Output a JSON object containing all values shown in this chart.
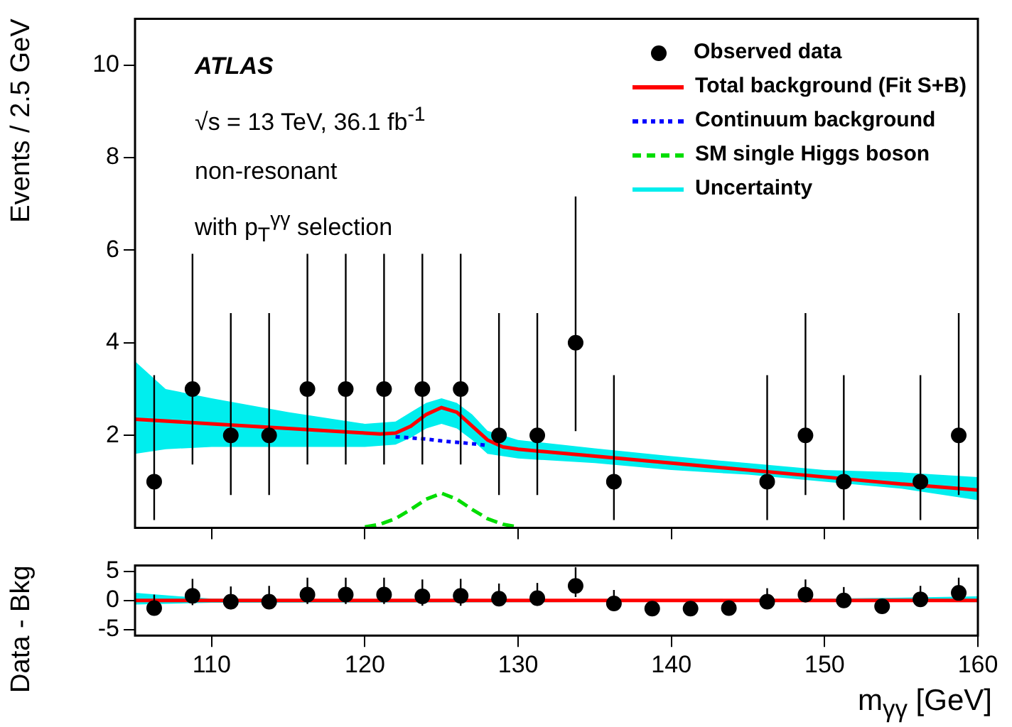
{
  "chart_data": [
    {
      "type": "scatter",
      "ylabel": "Events / 2.5 GeV",
      "xlim": [
        105,
        160
      ],
      "xticks": [
        110,
        120,
        130,
        140,
        150,
        160
      ],
      "ylim": [
        0,
        11
      ],
      "yticks": [
        2,
        4,
        6,
        8,
        10
      ],
      "tick_labels": "y",
      "legend": "top right",
      "grid": false,
      "annotations": [
        "ATLAS",
        "√s = 13 TeV, 36.1 fb$^{-1}$",
        "non-resonant",
        "with p$_{T}$$^{γγ}$ selection"
      ],
      "series": [
        {
          "name": "Observed data",
          "color": "#000000",
          "marker": "circle",
          "x": [
            106.25,
            108.75,
            111.25,
            113.75,
            116.25,
            118.75,
            121.25,
            123.75,
            126.25,
            128.75,
            131.25,
            133.75,
            136.25,
            138.75,
            141.25,
            143.75,
            146.25,
            148.75,
            151.25,
            153.75,
            156.25,
            158.75
          ],
          "values": [
            1,
            3,
            2,
            2,
            3,
            3,
            3,
            3,
            3,
            2,
            2,
            4,
            1,
            null,
            null,
            null,
            1,
            2,
            1,
            null,
            1,
            2
          ],
          "errors": [
            [
              0.17,
              3.3
            ],
            [
              1.37,
              5.92
            ],
            [
              0.71,
              4.64
            ],
            [
              0.71,
              4.64
            ],
            [
              1.37,
              5.92
            ],
            [
              1.37,
              5.92
            ],
            [
              1.37,
              5.92
            ],
            [
              1.37,
              5.92
            ],
            [
              1.37,
              5.92
            ],
            [
              0.71,
              4.64
            ],
            [
              0.71,
              4.64
            ],
            [
              2.09,
              7.16
            ],
            [
              0.17,
              3.3
            ],
            null,
            null,
            null,
            [
              0.17,
              3.3
            ],
            [
              0.71,
              4.64
            ],
            [
              0.17,
              3.3
            ],
            null,
            [
              0.17,
              3.3
            ],
            [
              0.71,
              4.64
            ]
          ]
        },
        {
          "name": "Total background (Fit S+B)",
          "type": "line",
          "color": "#ff0000",
          "line_style": "solid",
          "x": [
            105,
            110,
            115,
            120,
            121,
            122,
            123,
            124,
            125,
            126,
            127,
            128,
            129,
            130,
            135,
            140,
            145,
            150,
            155,
            160
          ],
          "values": [
            2.35,
            2.25,
            2.15,
            2.05,
            2.03,
            2.05,
            2.2,
            2.45,
            2.6,
            2.5,
            2.2,
            1.9,
            1.75,
            1.7,
            1.55,
            1.4,
            1.25,
            1.1,
            0.95,
            0.82
          ]
        },
        {
          "name": "Continuum background",
          "type": "line",
          "color": "#0000ff",
          "line_style": "dotted",
          "x": [
            122,
            124,
            125,
            126,
            127,
            128
          ],
          "values": [
            1.97,
            1.92,
            1.88,
            1.85,
            1.82,
            1.78
          ]
        },
        {
          "name": "SM single Higgs boson",
          "type": "line",
          "color": "#00dd00",
          "line_style": "dashed",
          "x": [
            120,
            121,
            122,
            123,
            124,
            125,
            126,
            127,
            128,
            129,
            130
          ],
          "values": [
            0.02,
            0.08,
            0.2,
            0.4,
            0.62,
            0.75,
            0.62,
            0.4,
            0.2,
            0.08,
            0.02
          ]
        },
        {
          "name": "Uncertainty",
          "type": "line",
          "color": "#00eeee",
          "x": [
            105,
            107,
            110,
            115,
            120,
            122,
            123,
            124,
            125,
            126,
            127,
            128,
            130,
            135,
            140,
            145,
            150,
            155,
            160
          ],
          "values": [
            null,
            null,
            null,
            null,
            null,
            null,
            null,
            null,
            null,
            null,
            null,
            null,
            null,
            null,
            null,
            null,
            null,
            null,
            null
          ],
          "lower": [
            1.6,
            1.7,
            1.75,
            1.75,
            1.75,
            1.8,
            1.95,
            2.15,
            2.25,
            2.15,
            1.9,
            1.6,
            1.5,
            1.4,
            1.25,
            1.15,
            1.0,
            0.85,
            0.6
          ],
          "upper": [
            3.6,
            3.0,
            2.8,
            2.5,
            2.25,
            2.3,
            2.5,
            2.7,
            2.8,
            2.7,
            2.45,
            2.1,
            1.9,
            1.72,
            1.55,
            1.4,
            1.25,
            1.2,
            1.1
          ]
        }
      ]
    },
    {
      "type": "scatter",
      "ylabel": "Data - Bkg",
      "xlabel": "m$_{γγ}$ [GeV]",
      "xlim": [
        105,
        160
      ],
      "xticks": [
        110,
        120,
        130,
        140,
        150,
        160
      ],
      "ylim": [
        -6,
        6
      ],
      "yticks": [
        -5,
        0,
        5
      ],
      "grid": false,
      "series": [
        {
          "type": "line",
          "color": "#00eeee",
          "x": [
            105,
            110,
            120,
            130,
            140,
            150,
            160
          ],
          "values": [
            null,
            null,
            null,
            null,
            null,
            null,
            null
          ],
          "lower": [
            -0.7,
            -0.4,
            -0.35,
            -0.3,
            -0.2,
            -0.2,
            -0.3
          ],
          "upper": [
            1.3,
            0.3,
            0.2,
            0.2,
            0.2,
            0.3,
            0.7
          ]
        },
        {
          "type": "line",
          "color": "#ff0000",
          "line_style": "solid",
          "x": [
            105,
            160
          ],
          "values": [
            0,
            0
          ]
        },
        {
          "color": "#000000",
          "marker": "circle",
          "x": [
            106.25,
            108.75,
            111.25,
            113.75,
            116.25,
            118.75,
            121.25,
            123.75,
            126.25,
            128.75,
            131.25,
            133.75,
            136.25,
            138.75,
            141.25,
            143.75,
            146.25,
            148.75,
            151.25,
            153.75,
            156.25,
            158.75
          ],
          "values": [
            -1.3,
            0.8,
            -0.2,
            -0.2,
            1.0,
            1.0,
            1.0,
            0.7,
            0.8,
            0.3,
            0.4,
            2.5,
            -0.5,
            -1.4,
            -1.4,
            -1.3,
            -0.2,
            1.0,
            0.0,
            -1.0,
            0.2,
            1.3
          ],
          "errors": [
            [
              -2.1,
              1.0
            ],
            [
              -0.8,
              3.7
            ],
            [
              -1.5,
              2.4
            ],
            [
              -1.4,
              2.5
            ],
            [
              -0.6,
              3.9
            ],
            [
              -0.6,
              3.9
            ],
            [
              -0.6,
              3.9
            ],
            [
              -0.9,
              3.6
            ],
            [
              -0.9,
              3.7
            ],
            [
              -1.0,
              2.9
            ],
            [
              -0.9,
              3.0
            ],
            [
              0.6,
              5.7
            ],
            [
              -1.3,
              1.8
            ],
            null,
            null,
            null,
            [
              -1.0,
              2.1
            ],
            [
              -0.3,
              3.6
            ],
            [
              -0.8,
              2.3
            ],
            null,
            [
              -0.7,
              2.5
            ],
            [
              0.0,
              3.9
            ]
          ]
        }
      ]
    }
  ]
}
